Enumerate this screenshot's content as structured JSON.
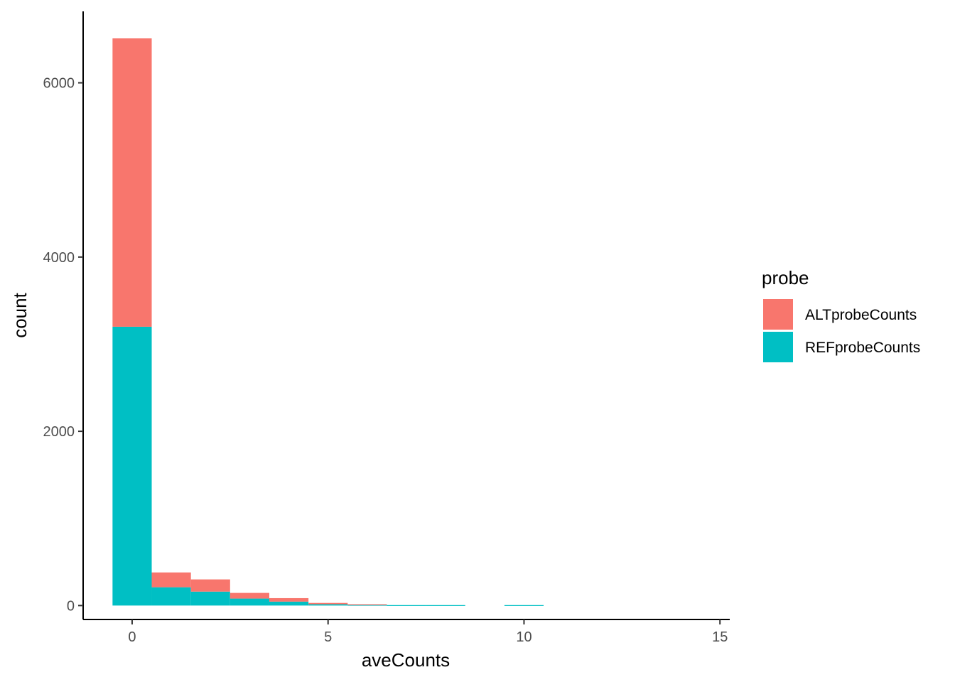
{
  "chart_data": {
    "type": "bar",
    "stacked": true,
    "xlabel": "aveCounts",
    "ylabel": "count",
    "xlim": [
      -1.25,
      15.25
    ],
    "ylim": [
      -160,
      6820
    ],
    "x_ticks": [
      0,
      5,
      10,
      15
    ],
    "y_ticks": [
      0,
      2000,
      4000,
      6000
    ],
    "bin_width": 1,
    "x": [
      0,
      1,
      2,
      3,
      4,
      5,
      6,
      7,
      8,
      9,
      10
    ],
    "grid": false,
    "legend": {
      "title": "probe",
      "position": "right"
    },
    "series": [
      {
        "name": "REFprobeCounts",
        "color": "#00BFC4",
        "values": [
          3200,
          210,
          160,
          80,
          45,
          15,
          8,
          5,
          5,
          0,
          5
        ]
      },
      {
        "name": "ALTprobeCounts",
        "color": "#F8766D",
        "values": [
          3310,
          170,
          140,
          65,
          40,
          15,
          7,
          0,
          0,
          0,
          0
        ]
      }
    ]
  }
}
